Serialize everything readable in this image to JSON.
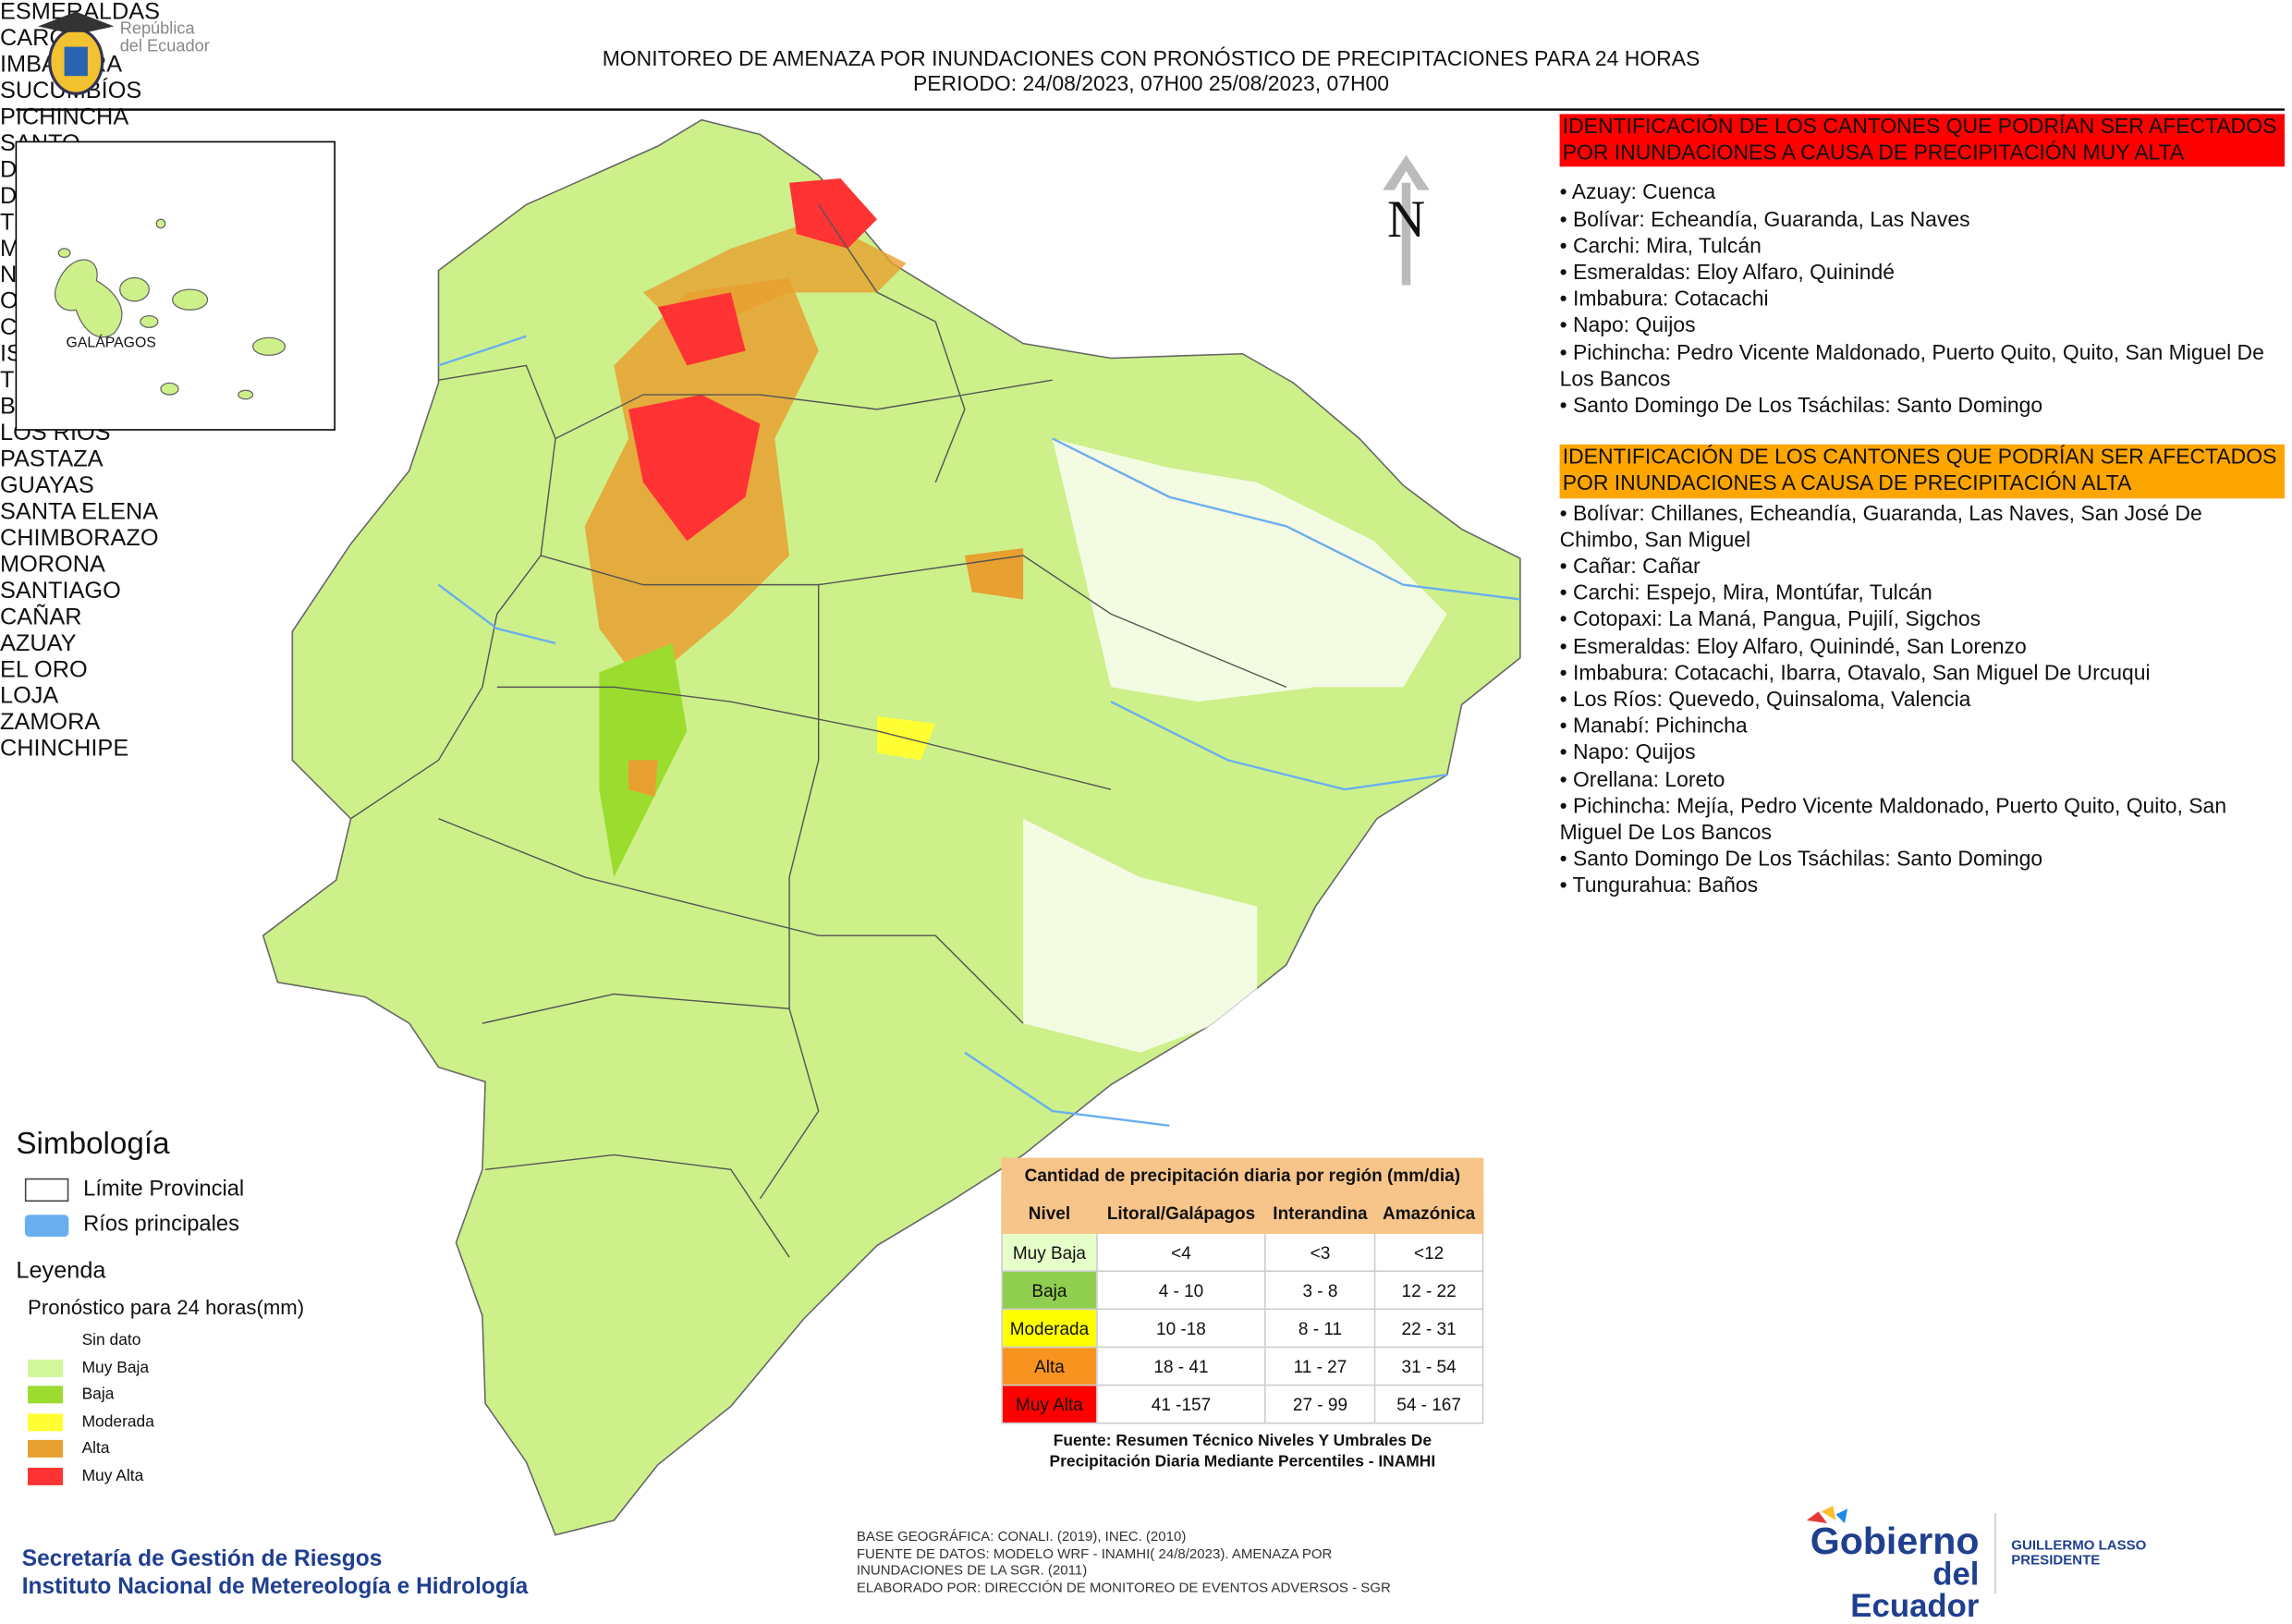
{
  "header": {
    "logo_text": [
      "República",
      "del Ecuador"
    ],
    "title": "MONITOREO DE AMENAZA POR INUNDACIONES  CON PRONÓSTICO DE  PRECIPITACIONES PARA 24 HORAS",
    "period": "PERIODO: 24/08/2023, 07H00 25/08/2023, 07H00"
  },
  "map": {
    "north": "N",
    "inset_label": "GALÁPAGOS",
    "labels": [
      "ESMERALDAS",
      "CARCHI",
      "IMBABURA",
      "SUCUMBÍOS",
      "PICHINCHA",
      "SANTO DOMINGO DE LOS TSÁCHILAS",
      "MANABÍ",
      "NAPO",
      "ORELLANA",
      "COTOPAXI",
      "ISLA",
      "TUNGURAHUA",
      "BOLÍVAR",
      "LOS RÍOS",
      "PASTAZA",
      "GUAYAS",
      "SANTA ELENA",
      "CHIMBORAZO",
      "MORONA SANTIAGO",
      "CAÑAR",
      "AZUAY",
      "EL ORO",
      "LOJA",
      "ZAMORA CHINCHIPE"
    ]
  },
  "legend": {
    "symbology_title": "Simbología",
    "symbology_items": [
      "Límite Provincial",
      "Ríos principales"
    ],
    "title": "Leyenda",
    "subtitle": "Pronóstico para 24 horas(mm)",
    "items": [
      {
        "label": "Sin dato",
        "color": "#ffffff"
      },
      {
        "label": "Muy Baja",
        "color": "#d2f79a"
      },
      {
        "label": "Baja",
        "color": "#9bdc2e"
      },
      {
        "label": "Moderada",
        "color": "#ffff33"
      },
      {
        "label": "Alta",
        "color": "#e8a030"
      },
      {
        "label": "Muy Alta",
        "color": "#ff3333"
      }
    ]
  },
  "lists": [
    {
      "heading": "IDENTIFICACIÓN DE LOS CANTONES QUE PODRÍAN SER AFECTADOS POR INUNDACIONES  A CAUSA DE PRECIPITACIÓN MUY ALTA",
      "color": "#ff0000",
      "items": [
        "• Azuay: Cuenca",
        "• Bolívar: Echeandía, Guaranda, Las Naves",
        "• Carchi: Mira, Tulcán",
        "• Esmeraldas: Eloy Alfaro, Quinindé",
        "• Imbabura: Cotacachi",
        "• Napo: Quijos",
        "• Pichincha: Pedro Vicente Maldonado, Puerto Quito, Quito, San Miguel De Los Bancos",
        "• Santo Domingo De Los Tsáchilas: Santo Domingo"
      ]
    },
    {
      "heading": "IDENTIFICACIÓN DE LOS CANTONES QUE  PODRÍAN SER AFECTADOS POR INUNDACIONES  A CAUSA DE PRECIPITACIÓN ALTA",
      "color": "#ffa500",
      "items": [
        "• Bolívar: Chillanes, Echeandía, Guaranda, Las Naves, San José De Chimbo, San Miguel",
        "• Cañar: Cañar",
        "• Carchi: Espejo, Mira, Montúfar, Tulcán",
        "• Cotopaxi: La Maná, Pangua, Pujilí, Sigchos",
        "• Esmeraldas: Eloy Alfaro, Quinindé, San Lorenzo",
        "• Imbabura: Cotacachi, Ibarra, Otavalo, San Miguel De Urcuqui",
        "• Los Ríos: Quevedo, Quinsaloma, Valencia",
        "• Manabí: Pichincha",
        "• Napo: Quijos",
        "• Orellana: Loreto",
        "• Pichincha: Mejía, Pedro Vicente Maldonado, Puerto Quito, Quito, San Miguel De Los Bancos",
        "• Santo Domingo De Los Tsáchilas: Santo Domingo",
        "• Tungurahua: Baños"
      ]
    }
  ],
  "table": {
    "title": "Cantidad de precipitación diaria por región (mm/dia)",
    "headers": [
      "Nivel",
      "Litoral/Galápagos",
      "Interandina",
      "Amazónica"
    ],
    "rows": [
      {
        "level": "Muy Baja",
        "color": "#e6ffc8",
        "cells": [
          "<4",
          "<3",
          "<12"
        ]
      },
      {
        "level": "Baja",
        "color": "#8fce4e",
        "cells": [
          "4 - 10",
          "3 - 8",
          "12 - 22"
        ]
      },
      {
        "level": "Moderada",
        "color": "#ffff00",
        "cells": [
          "10 -18",
          "8 - 11",
          "22 - 31"
        ]
      },
      {
        "level": "Alta",
        "color": "#f7931e",
        "cells": [
          "18 - 41",
          "11 - 27",
          "31 - 54"
        ]
      },
      {
        "level": "Muy Alta",
        "color": "#ff0000",
        "cells": [
          "41 -157",
          "27 - 99",
          "54 - 167"
        ]
      }
    ],
    "source": "Fuente: Resumen Técnico Niveles Y Umbrales De Precipitación Diaria Mediante Percentiles - INAMHI"
  },
  "footer": {
    "institutions": [
      "Secretaría de Gestión de Riesgos",
      "Instituto Nacional de Metereología e Hidrología"
    ],
    "notes": [
      "BASE GEOGRÁFICA: CONALI. (2019), INEC. (2010)",
      "FUENTE DE DATOS: MODELO WRF - INAMHI( 24/8/2023).  AMENAZA POR INUNDACIONES DE LA SGR. (2011)",
      "ELABORADO POR: DIRECCIÓN DE MONITOREO DE EVENTOS ADVERSOS - SGR"
    ],
    "gov_logo": [
      "Gobierno",
      "del Ecuador"
    ],
    "president": [
      "GUILLERMO LASSO",
      "PRESIDENTE"
    ]
  }
}
